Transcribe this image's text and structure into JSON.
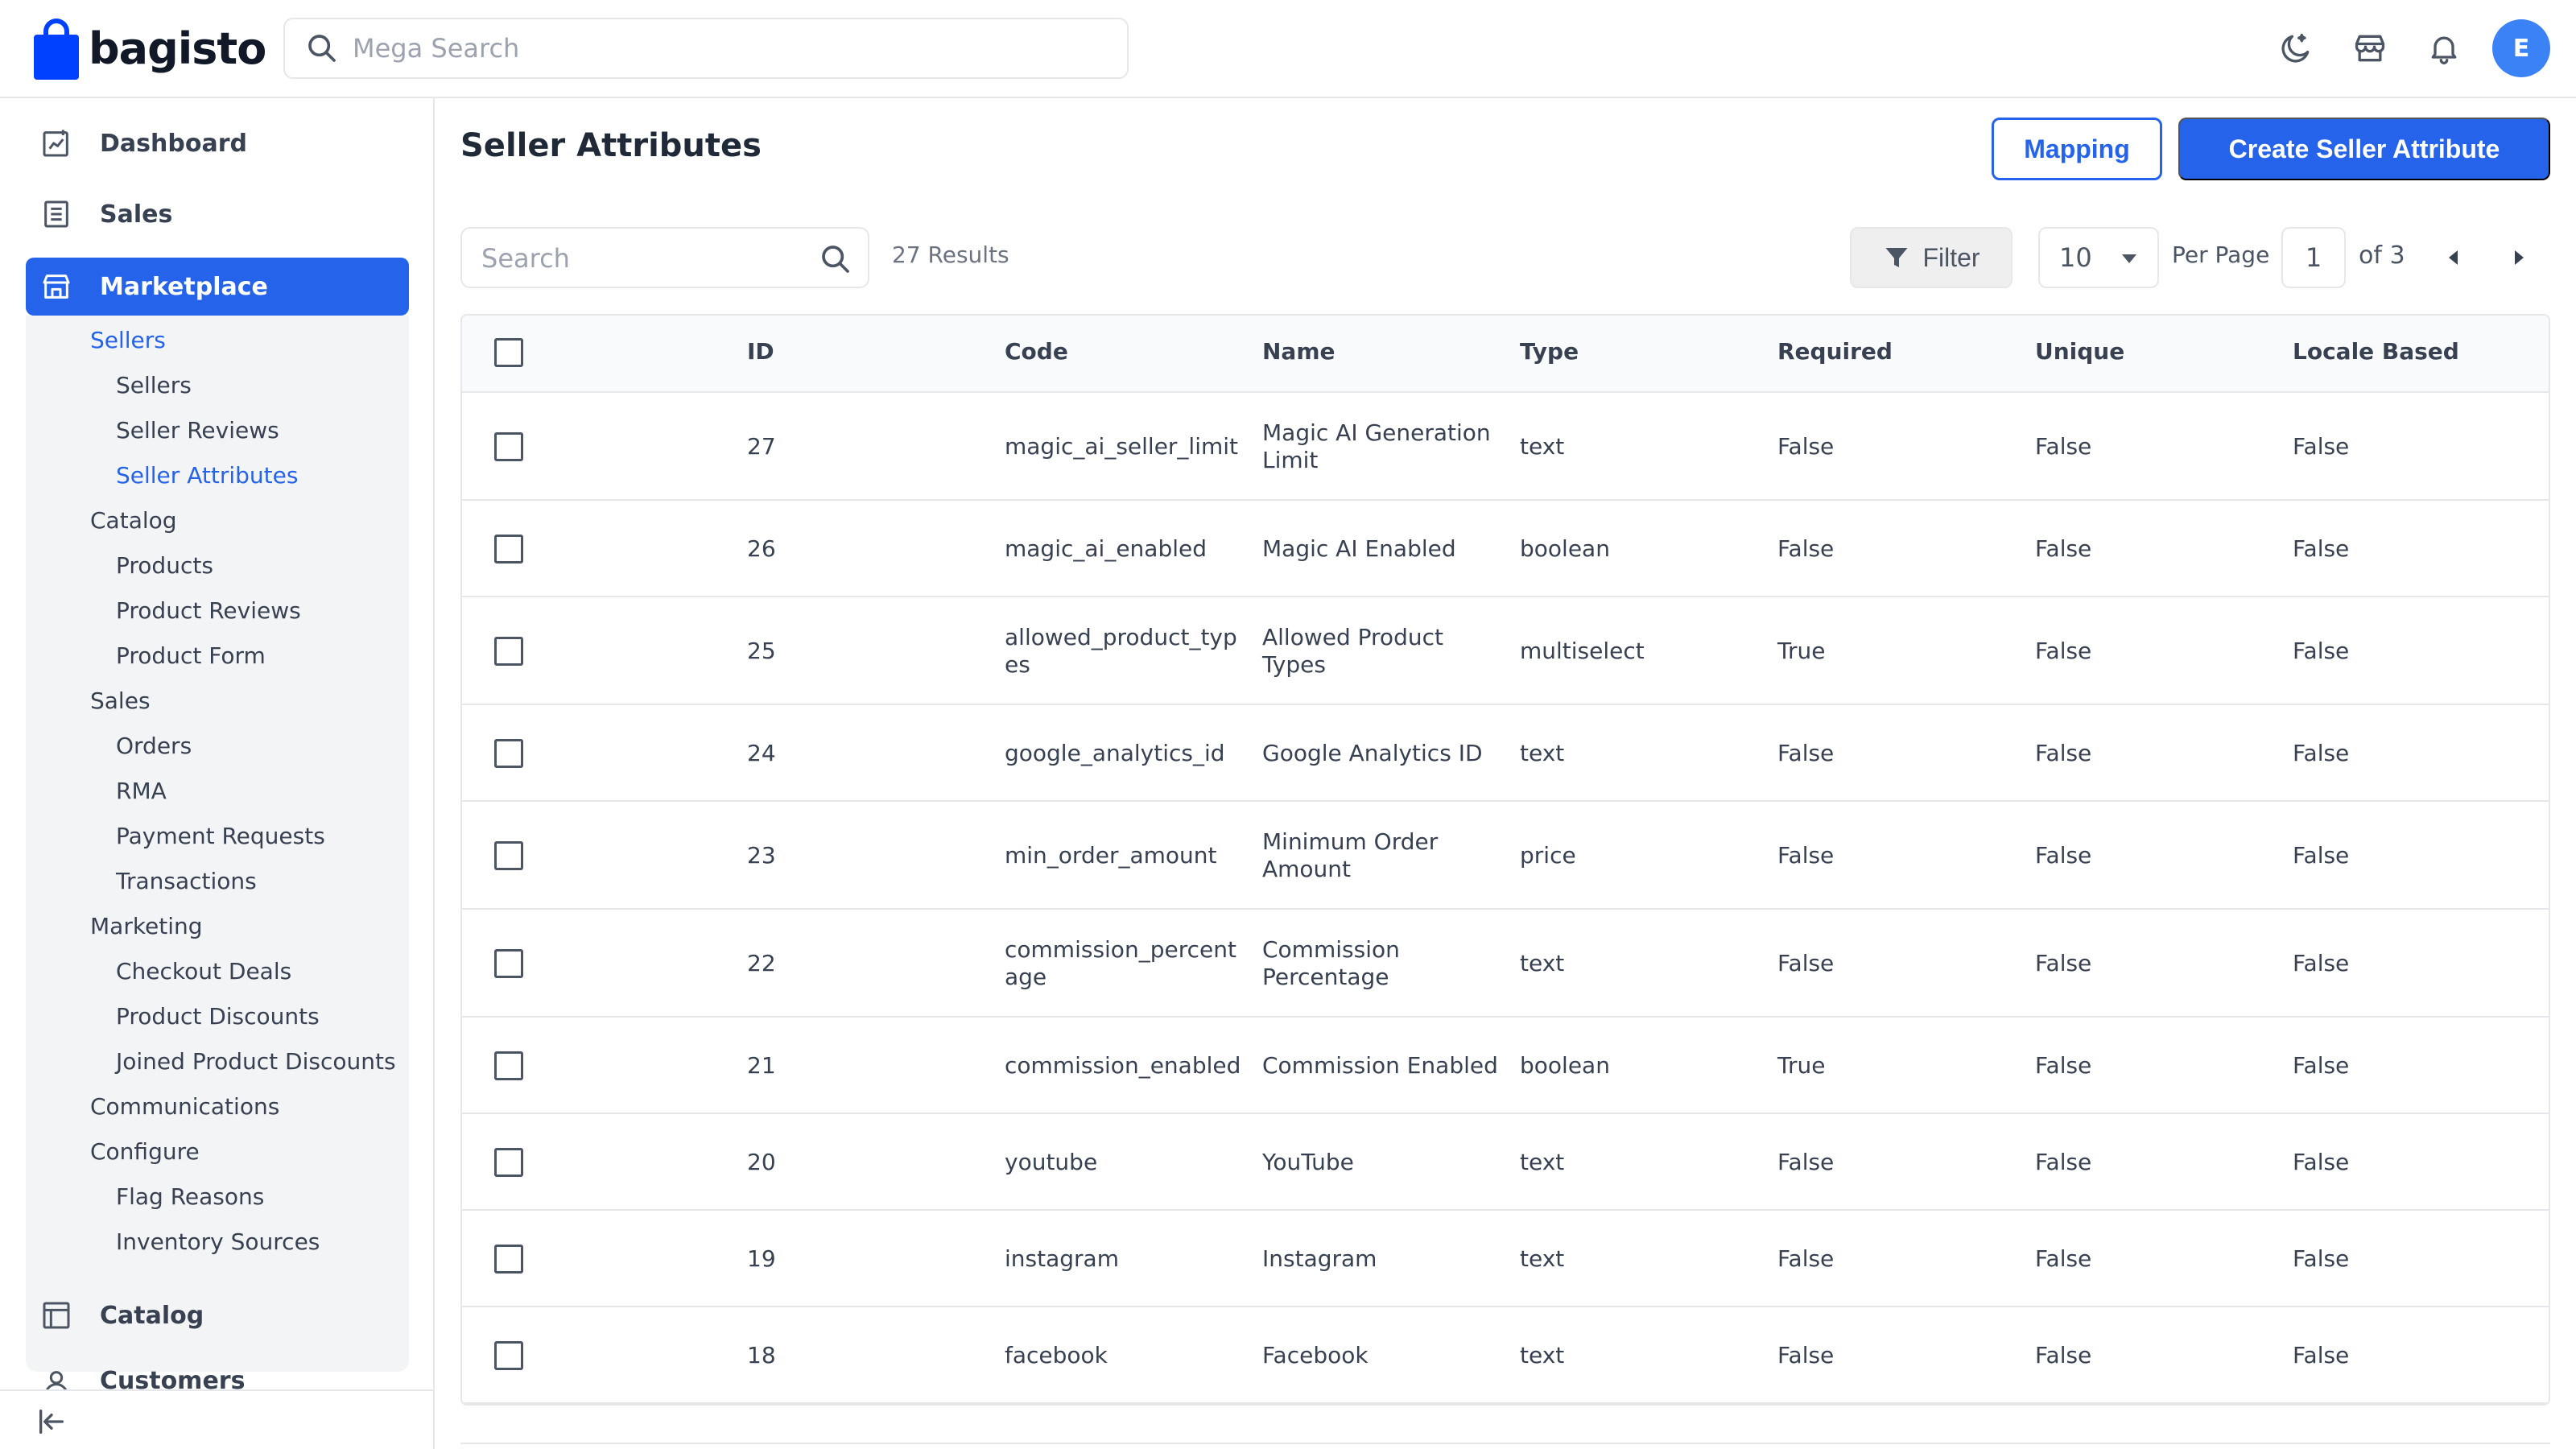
{
  "brand": {
    "name": "bagisto"
  },
  "header": {
    "search_placeholder": "Mega Search",
    "avatar_initial": "E"
  },
  "sidebar": {
    "top_items": [
      {
        "label": "Dashboard"
      },
      {
        "label": "Sales"
      },
      {
        "label": "Marketplace"
      }
    ],
    "marketplace_sub": {
      "sellers": "Sellers",
      "sellers_sellers": "Sellers",
      "seller_reviews": "Seller Reviews",
      "seller_attributes": "Seller Attributes",
      "catalog": "Catalog",
      "products": "Products",
      "product_reviews": "Product Reviews",
      "product_form": "Product Form",
      "sales": "Sales",
      "orders": "Orders",
      "rma": "RMA",
      "payment_requests": "Payment Requests",
      "transactions": "Transactions",
      "marketing": "Marketing",
      "checkout_deals": "Checkout Deals",
      "product_discounts": "Product Discounts",
      "joined_product_discounts": "Joined Product Discounts",
      "communications": "Communications",
      "configure": "Configure",
      "flag_reasons": "Flag Reasons",
      "inventory_sources": "Inventory Sources"
    },
    "bottom_items": [
      {
        "label": "Catalog"
      },
      {
        "label": "Customers"
      }
    ]
  },
  "page": {
    "title": "Seller Attributes",
    "mapping_label": "Mapping",
    "create_label": "Create Seller Attribute"
  },
  "toolbar": {
    "search_placeholder": "Search",
    "results": "27 Results",
    "filter_label": "Filter",
    "per_page_value": "10",
    "per_page_label": "Per Page",
    "page_value": "1",
    "of_pages": "of 3"
  },
  "table": {
    "headers": [
      "ID",
      "Code",
      "Name",
      "Type",
      "Required",
      "Unique",
      "Locale Based"
    ],
    "rows": [
      {
        "id": "27",
        "code": "magic_ai_seller_limit",
        "name": "Magic AI Generation Limit",
        "type": "text",
        "required": "False",
        "unique": "False",
        "locale": "False"
      },
      {
        "id": "26",
        "code": "magic_ai_enabled",
        "name": "Magic AI Enabled",
        "type": "boolean",
        "required": "False",
        "unique": "False",
        "locale": "False"
      },
      {
        "id": "25",
        "code": "allowed_product_types",
        "name": "Allowed Product Types",
        "type": "multiselect",
        "required": "True",
        "unique": "False",
        "locale": "False"
      },
      {
        "id": "24",
        "code": "google_analytics_id",
        "name": "Google Analytics ID",
        "type": "text",
        "required": "False",
        "unique": "False",
        "locale": "False"
      },
      {
        "id": "23",
        "code": "min_order_amount",
        "name": "Minimum Order Amount",
        "type": "price",
        "required": "False",
        "unique": "False",
        "locale": "False"
      },
      {
        "id": "22",
        "code": "commission_percentage",
        "name": "Commission Percentage",
        "type": "text",
        "required": "False",
        "unique": "False",
        "locale": "False"
      },
      {
        "id": "21",
        "code": "commission_enabled",
        "name": "Commission Enabled",
        "type": "boolean",
        "required": "True",
        "unique": "False",
        "locale": "False"
      },
      {
        "id": "20",
        "code": "youtube",
        "name": "YouTube",
        "type": "text",
        "required": "False",
        "unique": "False",
        "locale": "False"
      },
      {
        "id": "19",
        "code": "instagram",
        "name": "Instagram",
        "type": "text",
        "required": "False",
        "unique": "False",
        "locale": "False"
      },
      {
        "id": "18",
        "code": "facebook",
        "name": "Facebook",
        "type": "text",
        "required": "False",
        "unique": "False",
        "locale": "False"
      }
    ]
  },
  "colors": {
    "accent": "#2563eb",
    "brand_blue": "#0041ff",
    "avatar": "#3b82f6"
  }
}
